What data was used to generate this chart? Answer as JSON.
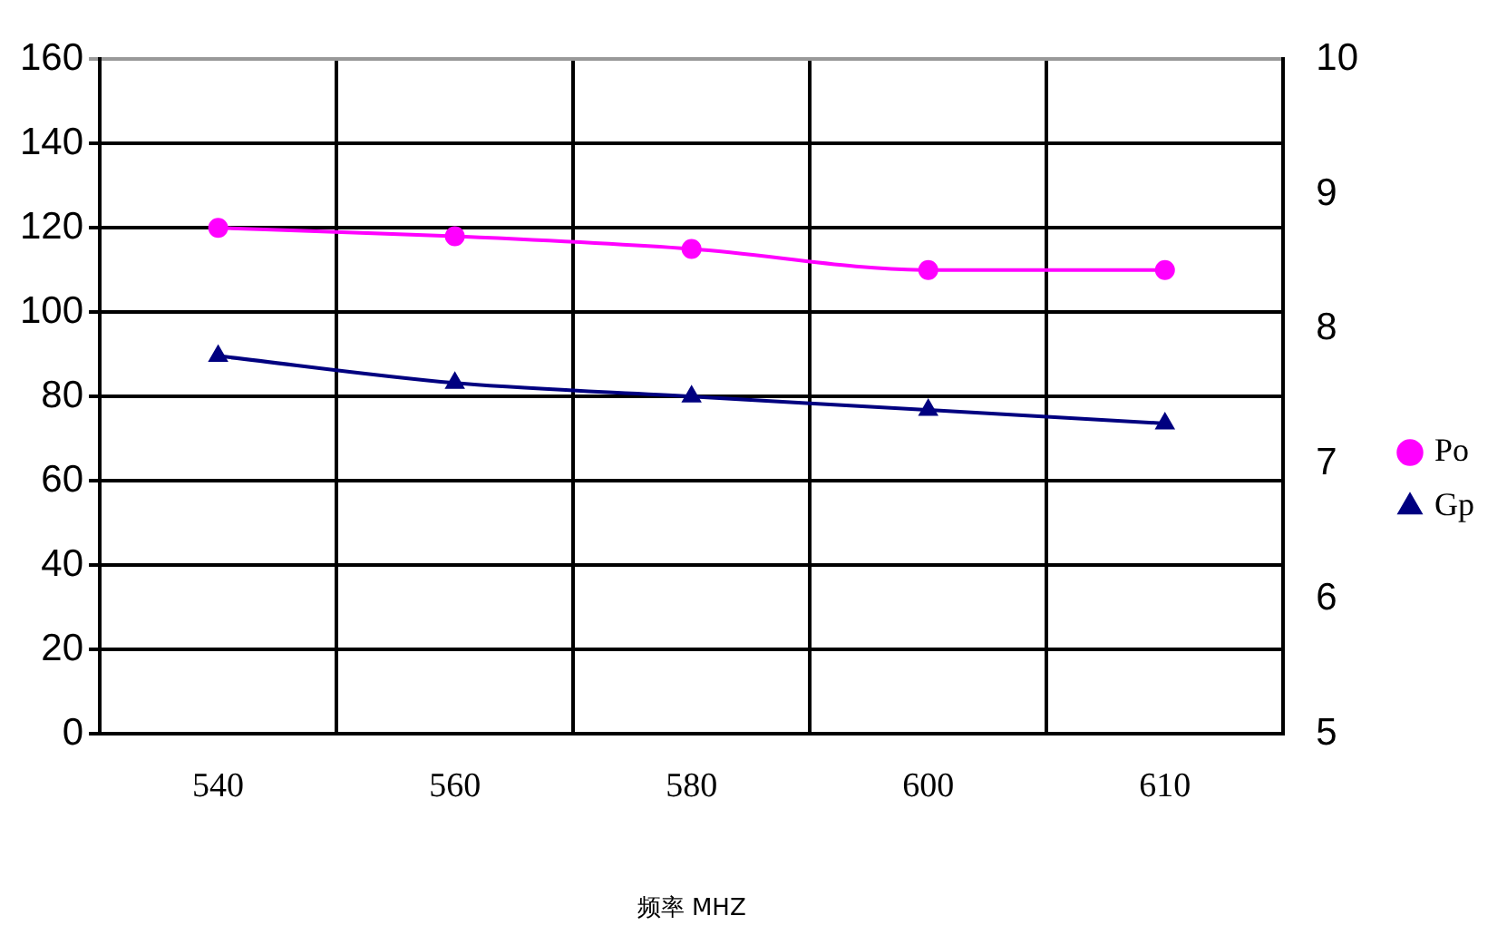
{
  "chart_data": {
    "type": "line",
    "xlabel": "频率 MHZ",
    "categories": [
      "540",
      "560",
      "580",
      "600",
      "610"
    ],
    "series": [
      {
        "name": "Po",
        "color": "#ff00ff",
        "marker": "circle",
        "values": [
          120,
          118,
          115,
          110,
          110
        ]
      },
      {
        "name": "Gp",
        "color": "#000080",
        "marker": "triangle",
        "axis": "y2",
        "values": [
          7.8,
          7.6,
          7.5,
          7.4,
          7.3
        ]
      }
    ],
    "ylim": [
      0,
      160
    ],
    "yticks": [
      0,
      20,
      40,
      60,
      80,
      100,
      120,
      140,
      160
    ],
    "y2lim": [
      5,
      10
    ],
    "y2ticks": [
      5,
      6,
      7,
      8,
      9,
      10
    ],
    "grid": true,
    "legend": "right",
    "line_style": "solid"
  }
}
